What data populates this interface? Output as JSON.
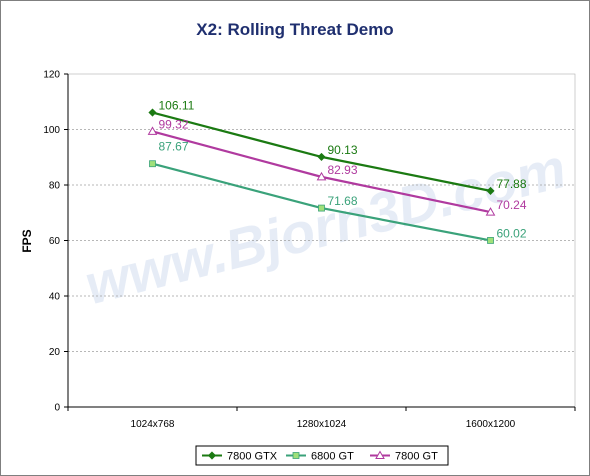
{
  "chart_data": {
    "type": "line",
    "title": "X2: Rolling Threat Demo",
    "ylabel": "FPS",
    "xlabel": "",
    "categories": [
      "1024x768",
      "1280x1024",
      "1600x1200"
    ],
    "ylim": [
      0,
      120
    ],
    "yticks": [
      0,
      20,
      40,
      60,
      80,
      100,
      120
    ],
    "grid": true,
    "legend_position": "bottom",
    "watermark": "www.Bjorn3D.com",
    "series": [
      {
        "name": "7800 GTX",
        "values": [
          106.11,
          90.13,
          77.88
        ],
        "labels": [
          "106.11",
          "90.13",
          "77.88"
        ],
        "color": "#1b7a12",
        "marker": "diamond"
      },
      {
        "name": "6800 GT",
        "values": [
          87.67,
          71.68,
          60.02
        ],
        "labels": [
          "87.67",
          "71.68",
          "60.02"
        ],
        "color": "#3aa27a",
        "marker": "square"
      },
      {
        "name": "7800 GT",
        "values": [
          99.32,
          82.93,
          70.24
        ],
        "labels": [
          "99.32",
          "82.93",
          "70.24"
        ],
        "color": "#b03a9f",
        "marker": "triangle"
      }
    ]
  }
}
